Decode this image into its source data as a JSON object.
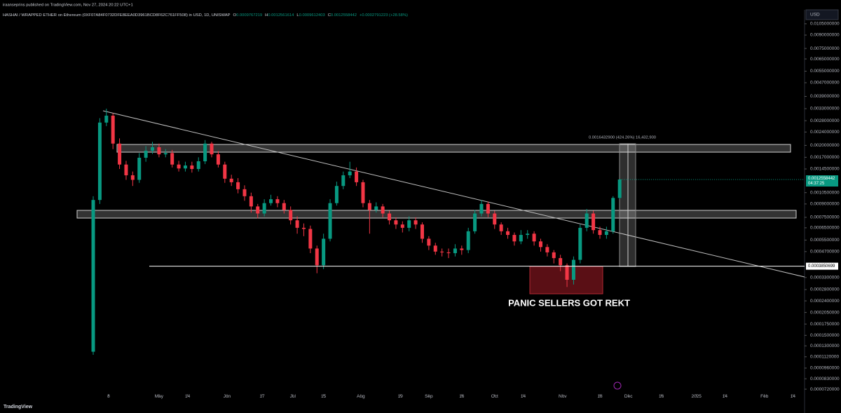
{
  "header": {
    "publisher": "iraanseprins published on TradingView.com, Nov 27, 2024 20:22 UTC+1",
    "brand": "TradingView"
  },
  "chart_data": {
    "type": "candlestick",
    "title": "HASHAI / WRAPPED ETHER on Ethereum (0XF07A84F0732DFE8EEA0D3961BCD8F62C761FF508) in USD, 1D, UNISWAP",
    "ohlc_letters": [
      "O",
      "H",
      "L",
      "C"
    ],
    "change": "+0.0002791223 (+28.58%)",
    "currency": "USD",
    "countdown": "04:37:25",
    "log_scale": true,
    "up_color": "#089981",
    "down_color": "#f23645",
    "xlim": [
      -42.5,
      324.3
    ],
    "xticks": [
      {
        "value": 7,
        "label": "8"
      },
      {
        "value": 30,
        "label": "May"
      },
      {
        "value": 43,
        "label": "14"
      },
      {
        "value": 61,
        "label": "Jun"
      },
      {
        "value": 77,
        "label": "17"
      },
      {
        "value": 91,
        "label": "Jul"
      },
      {
        "value": 105,
        "label": "15"
      },
      {
        "value": 122,
        "label": "Aug"
      },
      {
        "value": 140,
        "label": "19"
      },
      {
        "value": 153,
        "label": "Sep"
      },
      {
        "value": 168,
        "label": "16"
      },
      {
        "value": 183,
        "label": "Oct"
      },
      {
        "value": 196,
        "label": "14"
      },
      {
        "value": 214,
        "label": "Nov"
      },
      {
        "value": 231,
        "label": "18"
      },
      {
        "value": 244,
        "label": "Dec"
      },
      {
        "value": 259,
        "label": "16"
      },
      {
        "value": 275,
        "label": "2025"
      },
      {
        "value": 288,
        "label": "14"
      },
      {
        "value": 306,
        "label": "Feb"
      },
      {
        "value": 319,
        "label": "14"
      }
    ],
    "ylim": [
      6.24e-05,
      0.0127
    ],
    "yticks": [
      {
        "value": 0.0105,
        "label": "0.0105000000"
      },
      {
        "value": 0.009,
        "label": "0.0090000000"
      },
      {
        "value": 0.0075,
        "label": "0.0075000000"
      },
      {
        "value": 0.0065,
        "label": "0.0065000000"
      },
      {
        "value": 0.0055,
        "label": "0.0055000000"
      },
      {
        "value": 0.0047,
        "label": "0.0047000000"
      },
      {
        "value": 0.0039,
        "label": "0.0039000000"
      },
      {
        "value": 0.0033,
        "label": "0.0033000000"
      },
      {
        "value": 0.0028,
        "label": "0.0028000000"
      },
      {
        "value": 0.0024,
        "label": "0.0024000000"
      },
      {
        "value": 0.002,
        "label": "0.0020000000"
      },
      {
        "value": 0.0017,
        "label": "0.0017000000"
      },
      {
        "value": 0.00145,
        "label": "0.0014500000"
      },
      {
        "value": 0.00105,
        "label": "0.0010500000"
      },
      {
        "value": 0.0009,
        "label": "0.0009000000"
      },
      {
        "value": 0.00075,
        "label": "0.0007500000"
      },
      {
        "value": 0.00065,
        "label": "0.0006500000"
      },
      {
        "value": 0.00055,
        "label": "0.0005500000"
      },
      {
        "value": 0.00047,
        "label": "0.0004700000"
      },
      {
        "value": 0.00033,
        "label": "0.0003300000"
      },
      {
        "value": 0.00028,
        "label": "0.0002800000"
      },
      {
        "value": 0.00024,
        "label": "0.0002400000"
      },
      {
        "value": 0.000205,
        "label": "0.0002050000"
      },
      {
        "value": 0.000175,
        "label": "0.0001750000"
      },
      {
        "value": 0.00015,
        "label": "0.0001500000"
      },
      {
        "value": 0.00013,
        "label": "0.0001300000"
      },
      {
        "value": 0.000112,
        "label": "0.0001120000"
      },
      {
        "value": 9.6e-05,
        "label": "0.0000960000"
      },
      {
        "value": 8.3e-05,
        "label": "0.0000830000"
      },
      {
        "value": 7.2e-05,
        "label": "0.0000720000"
      }
    ],
    "hline": 0.0003850699,
    "measure_label": "0.0016432900 (424.26%) 16,432,900",
    "annotation": "PANIC SELLERS GOT REKT",
    "candles": {
      "x": [
        0,
        3,
        6,
        9,
        12,
        15,
        18,
        21,
        24,
        27,
        30,
        33,
        36,
        39,
        42,
        45,
        48,
        51,
        54,
        57,
        60,
        63,
        66,
        69,
        72,
        75,
        78,
        81,
        84,
        87,
        90,
        93,
        96,
        99,
        102,
        105,
        108,
        111,
        114,
        117,
        120,
        123,
        126,
        129,
        132,
        135,
        138,
        141,
        144,
        147,
        150,
        153,
        156,
        159,
        162,
        165,
        168,
        171,
        174,
        177,
        180,
        183,
        186,
        189,
        192,
        195,
        198,
        201,
        204,
        207,
        210,
        213,
        216,
        219,
        222,
        225,
        228,
        231,
        234,
        237,
        240
      ],
      "open": [
        0.00012,
        0.00095,
        0.00273,
        0.003,
        0.00205,
        0.00154,
        0.00133,
        0.00125,
        0.00169,
        0.00186,
        0.00195,
        0.00177,
        0.0018,
        0.00154,
        0.00146,
        0.00152,
        0.00145,
        0.00161,
        0.00205,
        0.00177,
        0.00154,
        0.00127,
        0.00121,
        0.0011,
        0.001,
        0.00087,
        0.00079,
        0.00091,
        0.00096,
        0.00091,
        0.00083,
        0.00072,
        0.00065,
        0.00064,
        0.00049,
        0.00039,
        0.00056,
        0.00091,
        0.00115,
        0.00133,
        0.0014,
        0.00121,
        0.00091,
        0.00083,
        0.00087,
        0.00079,
        0.00072,
        0.00068,
        0.00065,
        0.00072,
        0.00068,
        0.00056,
        0.00051,
        0.00047,
        0.000465,
        0.00046,
        0.00049,
        0.00048,
        0.00062,
        0.00079,
        0.0009,
        0.00079,
        0.00068,
        0.00062,
        0.00059,
        0.00054,
        0.00059,
        0.0006,
        0.00054,
        0.0005,
        0.000465,
        0.00043,
        0.00039,
        0.00032,
        0.00042,
        0.00065,
        0.00079,
        0.00063,
        0.00059,
        0.00062,
        0.0009767219
      ],
      "high": [
        0.001,
        0.0029,
        0.0033,
        0.0031,
        0.0022,
        0.00162,
        0.0014,
        0.0018,
        0.00198,
        0.0021,
        0.00205,
        0.0019,
        0.00188,
        0.00162,
        0.0016,
        0.0016,
        0.0017,
        0.00215,
        0.0021,
        0.00185,
        0.0016,
        0.00134,
        0.00128,
        0.00116,
        0.00105,
        0.0009,
        0.00096,
        0.00102,
        0.001,
        0.00095,
        0.00087,
        0.00076,
        0.00069,
        0.00067,
        0.00051,
        0.0006,
        0.00096,
        0.00122,
        0.0014,
        0.0016,
        0.00148,
        0.00125,
        0.00095,
        0.00092,
        0.0009,
        0.00082,
        0.00075,
        0.00071,
        0.00076,
        0.00075,
        0.0007,
        0.00058,
        0.00053,
        0.00049,
        0.00049,
        0.00052,
        0.00051,
        0.00065,
        0.00083,
        0.00095,
        0.00093,
        0.00082,
        0.0007,
        0.00065,
        0.00061,
        0.00063,
        0.00063,
        0.00062,
        0.00056,
        0.00052,
        0.00048,
        0.00045,
        0.0004,
        0.00044,
        0.00068,
        0.00084,
        0.00082,
        0.00066,
        0.00066,
        0.001,
        0.0012561614
      ],
      "low": [
        0.000115,
        0.0009,
        0.0026,
        0.0019,
        0.00145,
        0.00125,
        0.00115,
        0.0012,
        0.0016,
        0.00178,
        0.0017,
        0.0017,
        0.00148,
        0.0014,
        0.0014,
        0.00138,
        0.0014,
        0.00155,
        0.0017,
        0.00148,
        0.0012,
        0.00115,
        0.00104,
        0.00094,
        0.0008,
        0.00074,
        0.00076,
        0.00088,
        0.00086,
        0.00079,
        0.00068,
        0.0006,
        0.00058,
        0.00046,
        0.00035,
        0.00037,
        0.00054,
        0.00088,
        0.0011,
        0.00128,
        0.00115,
        0.00086,
        0.0006,
        0.0008,
        0.00075,
        0.00068,
        0.00064,
        0.00061,
        0.00062,
        0.00064,
        0.00053,
        0.00048,
        0.00045,
        0.00044,
        0.00043,
        0.00044,
        0.00045,
        0.00046,
        0.0006,
        0.00076,
        0.00075,
        0.00064,
        0.00059,
        0.00056,
        0.00051,
        0.00052,
        0.00056,
        0.00051,
        0.00047,
        0.00044,
        0.0004,
        0.00036,
        0.00029,
        0.0003,
        0.0004,
        0.00062,
        0.0006,
        0.00056,
        0.00056,
        0.0006,
        0.0009612403
      ],
      "close": [
        0.00095,
        0.00273,
        0.003,
        0.00205,
        0.00154,
        0.00133,
        0.00125,
        0.00169,
        0.00186,
        0.00195,
        0.00177,
        0.0018,
        0.00154,
        0.00146,
        0.00152,
        0.00145,
        0.00161,
        0.00205,
        0.00177,
        0.00154,
        0.00127,
        0.00121,
        0.0011,
        0.001,
        0.00087,
        0.00079,
        0.00091,
        0.00096,
        0.00091,
        0.00083,
        0.00072,
        0.00065,
        0.00064,
        0.00049,
        0.00039,
        0.00056,
        0.00091,
        0.00115,
        0.00133,
        0.0014,
        0.00121,
        0.00091,
        0.00083,
        0.00087,
        0.00079,
        0.00072,
        0.00068,
        0.00065,
        0.00072,
        0.00068,
        0.00056,
        0.00051,
        0.00047,
        0.000465,
        0.00046,
        0.00049,
        0.00048,
        0.00062,
        0.00079,
        0.0009,
        0.00079,
        0.00068,
        0.00062,
        0.00059,
        0.00054,
        0.00059,
        0.0006,
        0.00054,
        0.0005,
        0.000465,
        0.00043,
        0.00039,
        0.00032,
        0.00042,
        0.00065,
        0.00079,
        0.00063,
        0.00059,
        0.00062,
        0.0009767219,
        0.0012558442
      ]
    }
  }
}
